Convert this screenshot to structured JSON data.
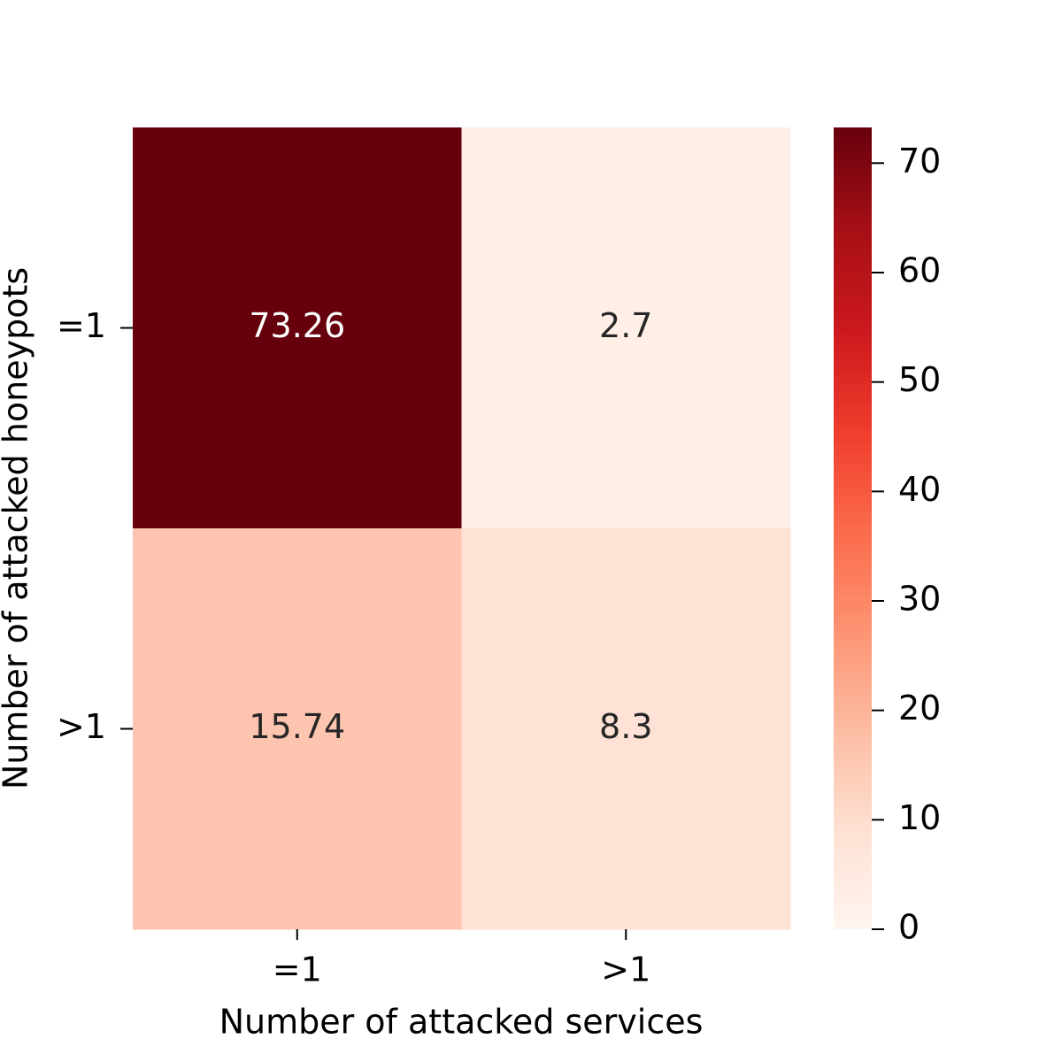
{
  "chart_data": {
    "type": "heatmap",
    "x_label": "Number of attacked services",
    "y_label": "Number of attacked honeypots",
    "x_categories": [
      "=1",
      ">1"
    ],
    "y_categories": [
      "=1",
      ">1"
    ],
    "values": [
      [
        73.26,
        2.7
      ],
      [
        15.74,
        8.3
      ]
    ],
    "colormap": [
      "#fff5f0",
      "#fee0d2",
      "#fcbba1",
      "#fc9272",
      "#fb6a4a",
      "#ef3b2c",
      "#cb181d",
      "#a50f15",
      "#67000d"
    ],
    "colorbar_lim": [
      0,
      73.26
    ],
    "colorbar_ticks": [
      0,
      10,
      20,
      30,
      40,
      50,
      60,
      70
    ]
  }
}
